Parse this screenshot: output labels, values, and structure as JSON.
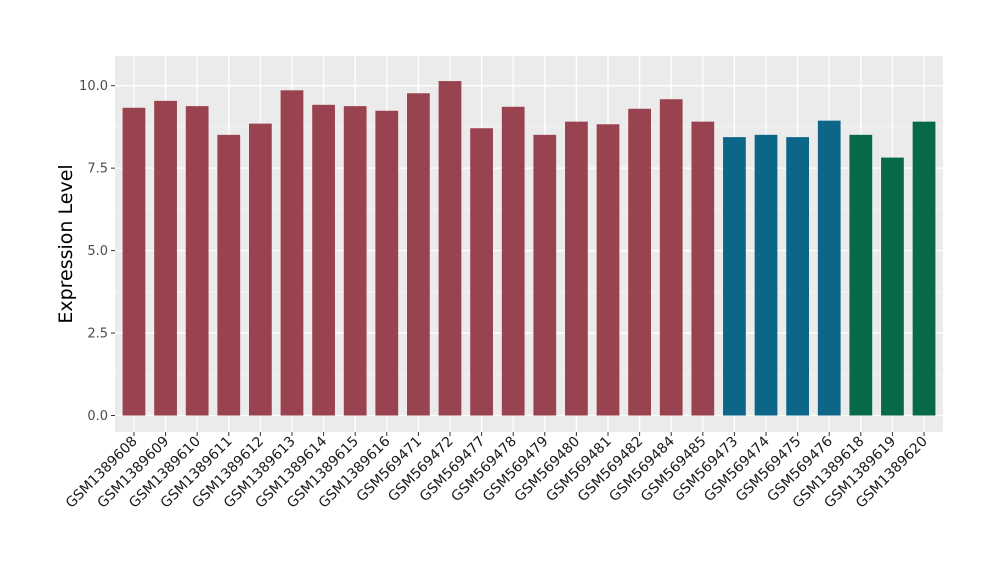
{
  "chart_data": {
    "type": "bar",
    "title": "",
    "xlabel": "",
    "ylabel": "Expression Level",
    "ylim": [
      -0.5,
      10.9
    ],
    "yticks": [
      "0.0",
      "2.5",
      "5.0",
      "7.5",
      "10.0"
    ],
    "ytick_values": [
      0,
      2.5,
      5.0,
      7.5,
      10.0
    ],
    "grid": true,
    "panel_background": "#ebebeb",
    "categories": [
      "GSM1389608",
      "GSM1389609",
      "GSM1389610",
      "GSM1389611",
      "GSM1389612",
      "GSM1389613",
      "GSM1389614",
      "GSM1389615",
      "GSM1389616",
      "GSM569471",
      "GSM569472",
      "GSM569477",
      "GSM569478",
      "GSM569479",
      "GSM569480",
      "GSM569481",
      "GSM569482",
      "GSM569484",
      "GSM569485",
      "GSM569473",
      "GSM569474",
      "GSM569475",
      "GSM569476",
      "GSM1389618",
      "GSM1389619",
      "GSM1389620"
    ],
    "values": [
      9.33,
      9.54,
      9.38,
      8.51,
      8.85,
      9.86,
      9.42,
      9.38,
      9.24,
      9.77,
      10.14,
      8.71,
      9.36,
      8.51,
      8.91,
      8.83,
      9.3,
      9.59,
      8.91,
      8.44,
      8.51,
      8.44,
      8.94,
      8.51,
      7.82,
      8.91
    ],
    "colors": [
      "#9a4350",
      "#9a4350",
      "#9a4350",
      "#9a4350",
      "#9a4350",
      "#9a4350",
      "#9a4350",
      "#9a4350",
      "#9a4350",
      "#9a4350",
      "#9a4350",
      "#9a4350",
      "#9a4350",
      "#9a4350",
      "#9a4350",
      "#9a4350",
      "#9a4350",
      "#9a4350",
      "#9a4350",
      "#0d6688",
      "#0d6688",
      "#0d6688",
      "#0d6688",
      "#076a46",
      "#076a46",
      "#076a46"
    ]
  }
}
